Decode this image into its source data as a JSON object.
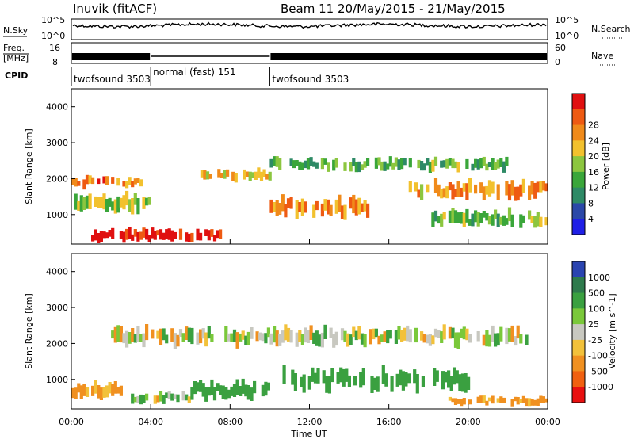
{
  "header": {
    "station": "Inuvik (fitACF)",
    "beam_date": "Beam 11  20/May/2015 - 21/May/2015"
  },
  "top_panels": {
    "nsky_label": "N.Sky",
    "nsky_ticks": [
      "10^5",
      "10^0"
    ],
    "nsearch_label": "N.Search",
    "nsearch_ticks": [
      "10^5",
      "10^0"
    ],
    "freq_label_1": "Freq.",
    "freq_label_2": "[MHz]",
    "freq_ticks": [
      "16",
      "8"
    ],
    "nave_label": "Nave",
    "nave_ticks": [
      "60",
      "0"
    ],
    "cpid_label": "CPID",
    "cpid_segments": [
      {
        "name": "twofsound 3503",
        "start_hour": 0,
        "end_hour": 4
      },
      {
        "name": "normal (fast) 151",
        "start_hour": 4,
        "end_hour": 10
      },
      {
        "name": "twofsound 3503",
        "start_hour": 10,
        "end_hour": 24
      }
    ]
  },
  "chart_data": [
    {
      "type": "heatmap",
      "ylabel": "Slant Range [km]",
      "yticks": [
        "1000",
        "2000",
        "3000",
        "4000"
      ],
      "ylim": [
        180,
        4500
      ],
      "xlim_hours": [
        0,
        24
      ],
      "colorbar_label": "Power [dB]",
      "colorbar_ticks": [
        "4",
        "8",
        "12",
        "16",
        "20",
        "24",
        "28"
      ],
      "colorbar_range": [
        0,
        30
      ],
      "colorscale": [
        "#1f1fe6",
        "#2b48a8",
        "#2e8a66",
        "#3aa63a",
        "#8cc63f",
        "#f2c12e",
        "#f08a1a",
        "#ee5a12",
        "#e01010"
      ],
      "bands": [
        {
          "center_km": 1900,
          "width_km": 260,
          "start_hour": 0.0,
          "end_hour": 3.6,
          "power_db": 23
        },
        {
          "center_km": 1350,
          "width_km": 420,
          "start_hour": 0.0,
          "end_hour": 4.0,
          "power_db": 15
        },
        {
          "center_km": 420,
          "width_km": 300,
          "start_hour": 1.0,
          "end_hour": 7.5,
          "power_db": 29
        },
        {
          "center_km": 2400,
          "width_km": 300,
          "start_hour": 10.0,
          "end_hour": 22.0,
          "power_db": 12
        },
        {
          "center_km": 2100,
          "width_km": 260,
          "start_hour": 6.5,
          "end_hour": 10.0,
          "power_db": 19
        },
        {
          "center_km": 1200,
          "width_km": 480,
          "start_hour": 10.0,
          "end_hour": 15.0,
          "power_db": 22
        },
        {
          "center_km": 1700,
          "width_km": 420,
          "start_hour": 17.0,
          "end_hour": 24.0,
          "power_db": 21
        },
        {
          "center_km": 900,
          "width_km": 380,
          "start_hour": 18.0,
          "end_hour": 24.0,
          "power_db": 13
        }
      ]
    },
    {
      "type": "heatmap",
      "ylabel": "Slant Range [km]",
      "yticks": [
        "1000",
        "2000",
        "3000",
        "4000"
      ],
      "ylim": [
        180,
        4500
      ],
      "xlim_hours": [
        0,
        24
      ],
      "xlabel": "Time UT",
      "xticks": [
        "00:00",
        "04:00",
        "08:00",
        "12:00",
        "16:00",
        "20:00",
        "00:00"
      ],
      "colorbar_label": "Velocity [m s^-1]",
      "colorbar_ticks": [
        "1000",
        "500",
        "100",
        "25",
        "-25",
        "-100",
        "-500",
        "-1000"
      ],
      "colorscale": [
        "#2a44b0",
        "#2e7a4c",
        "#3aa040",
        "#7ac83a",
        "#c8c8c0",
        "#f2c13a",
        "#f09020",
        "#f06010",
        "#e81010"
      ],
      "bands": [
        {
          "center_km": 2200,
          "width_km": 420,
          "start_hour": 2.0,
          "end_hour": 23.0,
          "velocity": 0
        },
        {
          "center_km": 1000,
          "width_km": 500,
          "start_hour": 10.5,
          "end_hour": 20.0,
          "velocity": 200
        },
        {
          "center_km": 700,
          "width_km": 340,
          "start_hour": 0.0,
          "end_hour": 2.5,
          "velocity": -150
        },
        {
          "center_km": 500,
          "width_km": 260,
          "start_hour": 3.0,
          "end_hour": 6.0,
          "velocity": 0
        },
        {
          "center_km": 700,
          "width_km": 400,
          "start_hour": 6.0,
          "end_hour": 10.0,
          "velocity": 200
        },
        {
          "center_km": 400,
          "width_km": 200,
          "start_hour": 19.0,
          "end_hour": 24.0,
          "velocity": -150
        }
      ]
    }
  ]
}
